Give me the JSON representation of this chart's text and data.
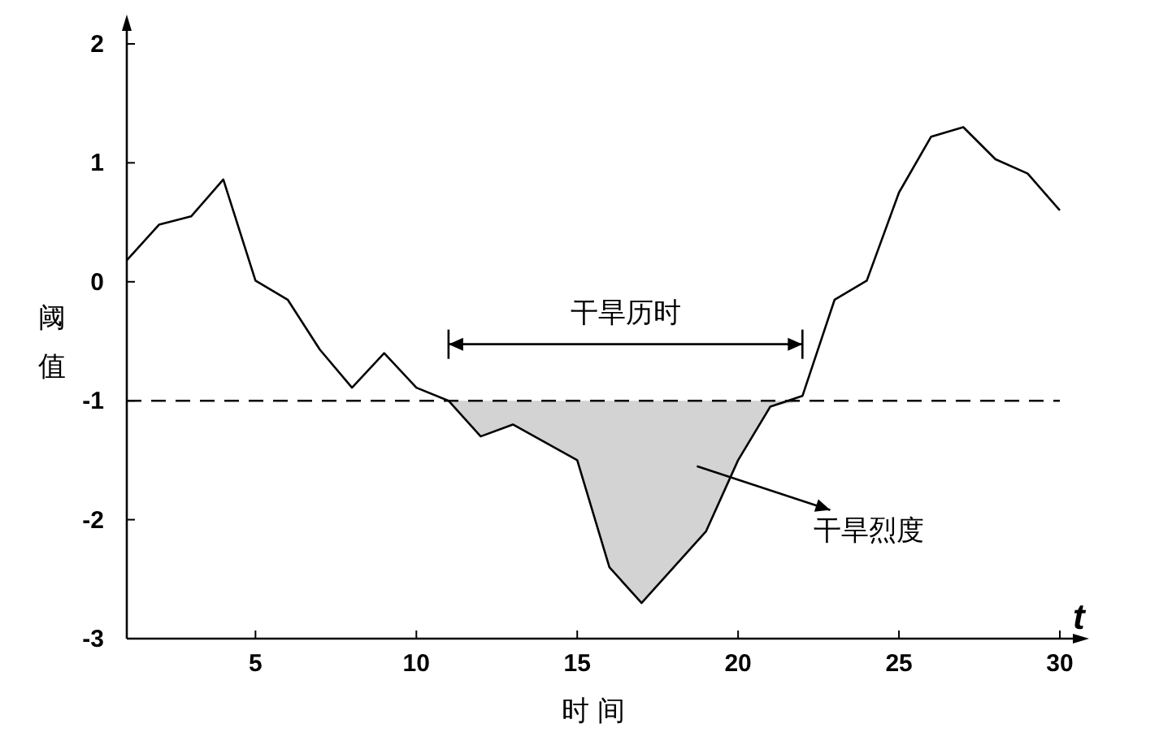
{
  "chart_data": {
    "type": "line",
    "xlabel": "时 间",
    "ylabel": "阈值",
    "xlim": [
      1,
      30
    ],
    "ylim": [
      -3,
      2
    ],
    "xticks": [
      5,
      10,
      15,
      20,
      25,
      30
    ],
    "yticks": [
      -3,
      -2,
      -1,
      0,
      1,
      2
    ],
    "grid": false,
    "series": [
      {
        "type": "line",
        "color": "#000000",
        "x": [
          1,
          2,
          3,
          4,
          5,
          6,
          7,
          8,
          9,
          10,
          11,
          12,
          13,
          14,
          15,
          16,
          17,
          18,
          19,
          20,
          21,
          22,
          23,
          24,
          25,
          26,
          27,
          28,
          29,
          30
        ],
        "values": [
          0.18,
          0.48,
          0.55,
          0.86,
          0.01,
          -0.15,
          -0.57,
          -0.89,
          -0.6,
          -0.89,
          -1.0,
          -1.3,
          -1.2,
          -1.35,
          -1.5,
          -2.4,
          -2.7,
          -2.4,
          -2.1,
          -1.5,
          -1.05,
          -0.96,
          -0.15,
          0.01,
          0.75,
          1.22,
          1.3,
          1.03,
          0.91,
          0.6
        ]
      },
      {
        "type": "area",
        "color": "#d3d3d3",
        "x": [
          11,
          12,
          13,
          14,
          15,
          16,
          17,
          18,
          19,
          20,
          21,
          22
        ],
        "values": [
          -1.0,
          -1.3,
          -1.2,
          -1.35,
          -1.5,
          -2.4,
          -2.7,
          -2.4,
          -2.1,
          -1.5,
          -1.05,
          -1.0
        ]
      }
    ],
    "ref_lines": [
      {
        "axis": "y",
        "value": -1,
        "color": "#000000",
        "line_style": "dashed"
      }
    ],
    "annotations": [
      "干旱历时",
      "干旱烈度",
      "t"
    ]
  }
}
